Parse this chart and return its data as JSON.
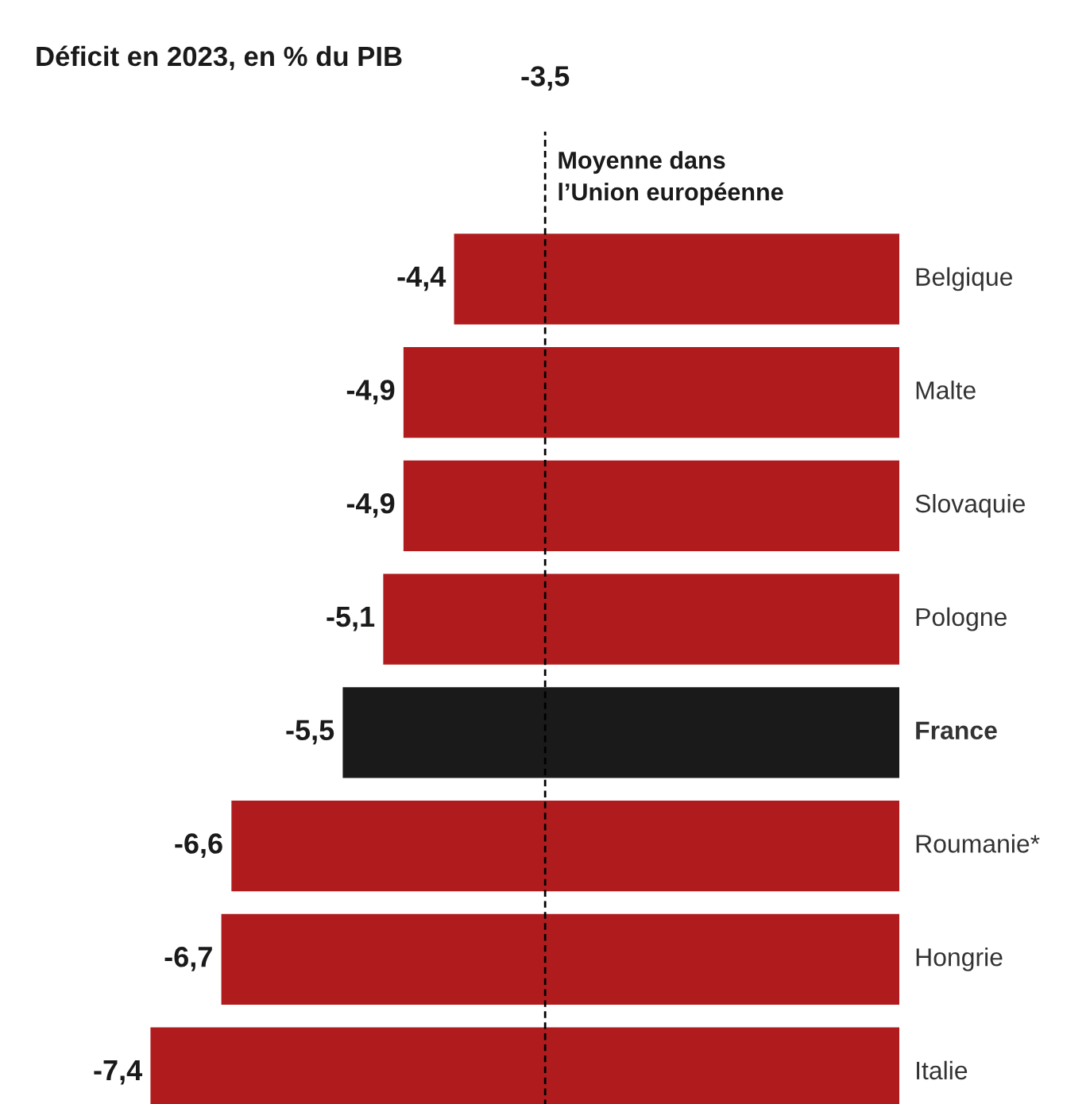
{
  "chart_data": {
    "type": "bar",
    "orientation": "horizontal",
    "title": "Déficit en 2023, en % du PIB",
    "categories": [
      "Belgique",
      "Malte",
      "Slovaquie",
      "Pologne",
      "France",
      "Roumanie*",
      "Hongrie",
      "Italie"
    ],
    "values": [
      -4.4,
      -4.9,
      -4.9,
      -5.1,
      -5.5,
      -6.6,
      -6.7,
      -7.4
    ],
    "value_labels": [
      "-4,4",
      "-4,9",
      "-4,9",
      "-5,1",
      "-5,5",
      "-6,6",
      "-6,7",
      "-7,4"
    ],
    "colors": [
      "#b01c1e",
      "#b01c1e",
      "#b01c1e",
      "#b01c1e",
      "#1a1a1a",
      "#b01c1e",
      "#b01c1e",
      "#b01c1e"
    ],
    "ref_lines": [
      {
        "axis": "x",
        "value": -3.5,
        "label": "-3,5",
        "color": "#000000",
        "line_style": "dashed"
      }
    ],
    "annotations": [
      "Moyenne dans\nl’Union européenne"
    ]
  }
}
